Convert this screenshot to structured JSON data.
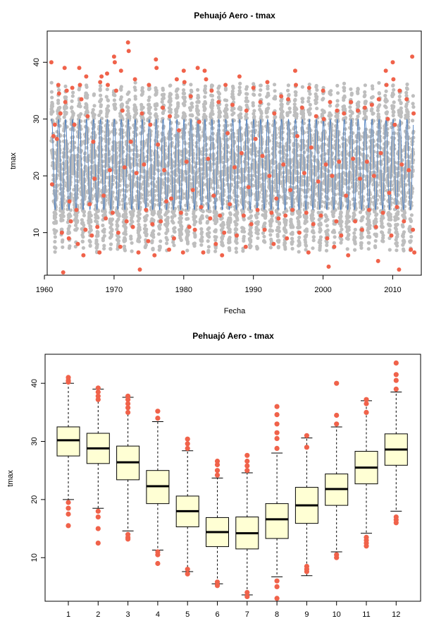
{
  "colors": {
    "grey_points": "#bebebe",
    "outlier_points": "#f0624a",
    "seasonal_line": "#4a7dbf",
    "box_fill": "#ffffd4",
    "frame": "#000000"
  },
  "chart_data": [
    {
      "type": "scatter",
      "title": "Pehuajó Aero - tmax",
      "xlabel": "Fecha",
      "ylabel": "tmax",
      "xlim": [
        1960.4,
        2014.1
      ],
      "ylim": [
        2.5,
        45.5
      ],
      "x_ticks": [
        1960,
        1970,
        1980,
        1990,
        2000,
        2010
      ],
      "y_ticks": [
        10,
        20,
        30,
        40
      ],
      "grid": false,
      "seasonal_cycle": {
        "start_year": 1961,
        "end_year": 2013,
        "min": 14,
        "max": 30,
        "peak_month": 1
      },
      "background_band": {
        "upper_summer": 36.5,
        "upper_winter": 19,
        "lower_summer": 22,
        "lower_winter": 6.5
      },
      "red_outliers": [
        [
          1961.0,
          40.0
        ],
        [
          1961.1,
          18.5
        ],
        [
          1961.3,
          27.0
        ],
        [
          1961.5,
          29.0
        ],
        [
          1961.8,
          26.5
        ],
        [
          1962.0,
          36.0
        ],
        [
          1962.1,
          34.5
        ],
        [
          1962.3,
          31.0
        ],
        [
          1962.5,
          10.0
        ],
        [
          1962.7,
          3.0
        ],
        [
          1962.9,
          39.0
        ],
        [
          1963.0,
          33.0
        ],
        [
          1963.2,
          35.0
        ],
        [
          1963.5,
          9.0
        ],
        [
          1963.6,
          15.5
        ],
        [
          1963.8,
          12.0
        ],
        [
          1964.0,
          35.5
        ],
        [
          1964.3,
          29.0
        ],
        [
          1964.6,
          14.0
        ],
        [
          1964.8,
          8.0
        ],
        [
          1965.0,
          39.0
        ],
        [
          1965.1,
          36.0
        ],
        [
          1965.3,
          33.5
        ],
        [
          1965.6,
          6.0
        ],
        [
          1965.9,
          10.5
        ],
        [
          1966.0,
          37.5
        ],
        [
          1966.2,
          30.5
        ],
        [
          1966.5,
          15.0
        ],
        [
          1966.8,
          9.5
        ],
        [
          1967.0,
          26.0
        ],
        [
          1967.2,
          19.5
        ],
        [
          1967.6,
          11.0
        ],
        [
          1967.9,
          6.5
        ],
        [
          1968.0,
          36.5
        ],
        [
          1968.2,
          37.5
        ],
        [
          1968.5,
          16.5
        ],
        [
          1968.8,
          12.5
        ],
        [
          1969.0,
          38.0
        ],
        [
          1969.1,
          36.0
        ],
        [
          1969.4,
          21.0
        ],
        [
          1969.8,
          13.5
        ],
        [
          1970.0,
          41.0
        ],
        [
          1970.1,
          40.0
        ],
        [
          1970.3,
          35.0
        ],
        [
          1970.6,
          10.0
        ],
        [
          1970.9,
          7.5
        ],
        [
          1971.0,
          38.5
        ],
        [
          1971.2,
          31.5
        ],
        [
          1971.5,
          21.5
        ],
        [
          1971.8,
          12.0
        ],
        [
          1972.0,
          43.5
        ],
        [
          1972.1,
          42.0
        ],
        [
          1972.4,
          26.0
        ],
        [
          1972.7,
          11.0
        ],
        [
          1973.0,
          37.0
        ],
        [
          1973.2,
          20.5
        ],
        [
          1973.5,
          6.5
        ],
        [
          1973.7,
          3.5
        ],
        [
          1974.0,
          31.0
        ],
        [
          1974.3,
          22.0
        ],
        [
          1974.6,
          14.0
        ],
        [
          1974.9,
          8.5
        ],
        [
          1975.0,
          36.0
        ],
        [
          1975.2,
          29.0
        ],
        [
          1975.5,
          11.5
        ],
        [
          1975.8,
          6.0
        ],
        [
          1976.0,
          40.5
        ],
        [
          1976.1,
          39.0
        ],
        [
          1976.3,
          25.5
        ],
        [
          1976.7,
          12.0
        ],
        [
          1977.0,
          32.0
        ],
        [
          1977.2,
          21.0
        ],
        [
          1977.5,
          15.5
        ],
        [
          1977.9,
          7.0
        ],
        [
          1978.0,
          30.5
        ],
        [
          1978.2,
          16.0
        ],
        [
          1978.6,
          9.0
        ],
        [
          1979.0,
          37.0
        ],
        [
          1979.3,
          28.0
        ],
        [
          1979.6,
          13.5
        ],
        [
          1979.9,
          6.5
        ],
        [
          1980.0,
          38.5
        ],
        [
          1980.1,
          36.5
        ],
        [
          1980.4,
          22.5
        ],
        [
          1980.8,
          11.0
        ],
        [
          1981.0,
          34.0
        ],
        [
          1981.3,
          17.5
        ],
        [
          1981.6,
          10.5
        ],
        [
          1982.0,
          39.0
        ],
        [
          1982.2,
          29.5
        ],
        [
          1982.5,
          14.5
        ],
        [
          1982.8,
          6.5
        ],
        [
          1983.0,
          38.5
        ],
        [
          1983.2,
          37.0
        ],
        [
          1983.5,
          23.0
        ],
        [
          1983.8,
          12.5
        ],
        [
          1984.0,
          35.0
        ],
        [
          1984.3,
          16.5
        ],
        [
          1984.6,
          8.0
        ],
        [
          1985.0,
          33.0
        ],
        [
          1985.2,
          13.0
        ],
        [
          1985.5,
          6.0
        ],
        [
          1985.8,
          10.0
        ],
        [
          1986.0,
          36.0
        ],
        [
          1986.3,
          27.5
        ],
        [
          1986.6,
          15.0
        ],
        [
          1987.0,
          32.5
        ],
        [
          1987.3,
          21.5
        ],
        [
          1987.6,
          9.5
        ],
        [
          1988.0,
          37.5
        ],
        [
          1988.3,
          24.0
        ],
        [
          1988.6,
          13.0
        ],
        [
          1988.9,
          7.5
        ],
        [
          1989.0,
          31.5
        ],
        [
          1989.3,
          18.0
        ],
        [
          1989.7,
          11.5
        ],
        [
          1990.0,
          35.5
        ],
        [
          1990.3,
          26.5
        ],
        [
          1990.6,
          14.0
        ],
        [
          1991.0,
          33.0
        ],
        [
          1991.3,
          23.5
        ],
        [
          1991.6,
          10.5
        ],
        [
          1992.0,
          36.5
        ],
        [
          1992.3,
          20.0
        ],
        [
          1992.6,
          13.5
        ],
        [
          1992.9,
          8.0
        ],
        [
          1993.0,
          31.0
        ],
        [
          1993.3,
          16.0
        ],
        [
          1993.6,
          12.5
        ],
        [
          1994.0,
          34.0
        ],
        [
          1994.3,
          22.0
        ],
        [
          1994.6,
          13.0
        ],
        [
          1994.8,
          9.0
        ],
        [
          1995.0,
          33.5
        ],
        [
          1995.3,
          17.5
        ],
        [
          1995.6,
          14.0
        ],
        [
          1996.0,
          38.5
        ],
        [
          1996.1,
          36.0
        ],
        [
          1996.3,
          27.0
        ],
        [
          1996.6,
          10.0
        ],
        [
          1997.0,
          32.0
        ],
        [
          1997.3,
          20.5
        ],
        [
          1997.6,
          13.5
        ],
        [
          1997.9,
          6.5
        ],
        [
          1998.0,
          35.5
        ],
        [
          1998.3,
          25.0
        ],
        [
          1998.6,
          11.5
        ],
        [
          1999.0,
          30.5
        ],
        [
          1999.3,
          19.0
        ],
        [
          1999.7,
          13.0
        ],
        [
          2000.0,
          35.0
        ],
        [
          2000.1,
          30.0
        ],
        [
          2000.4,
          22.0
        ],
        [
          2000.6,
          9.0
        ],
        [
          2000.8,
          4.0
        ],
        [
          2001.0,
          33.0
        ],
        [
          2001.3,
          20.0
        ],
        [
          2001.6,
          7.5
        ],
        [
          2001.9,
          12.0
        ],
        [
          2002.0,
          31.5
        ],
        [
          2002.3,
          22.5
        ],
        [
          2002.6,
          9.5
        ],
        [
          2003.0,
          31.0
        ],
        [
          2003.3,
          16.5
        ],
        [
          2003.6,
          6.0
        ],
        [
          2004.0,
          33.0
        ],
        [
          2004.3,
          23.0
        ],
        [
          2004.6,
          12.0
        ],
        [
          2005.0,
          31.5
        ],
        [
          2005.3,
          19.5
        ],
        [
          2005.6,
          10.5
        ],
        [
          2006.0,
          32.0
        ],
        [
          2006.3,
          22.5
        ],
        [
          2006.6,
          14.0
        ],
        [
          2007.0,
          32.5
        ],
        [
          2007.3,
          20.0
        ],
        [
          2007.6,
          11.0
        ],
        [
          2007.9,
          5.0
        ],
        [
          2008.0,
          33.5
        ],
        [
          2008.3,
          24.0
        ],
        [
          2008.6,
          13.5
        ],
        [
          2009.0,
          38.5
        ],
        [
          2009.1,
          36.0
        ],
        [
          2009.3,
          30.0
        ],
        [
          2009.5,
          17.0
        ],
        [
          2009.8,
          9.5
        ],
        [
          2010.0,
          40.0
        ],
        [
          2010.1,
          37.0
        ],
        [
          2010.3,
          29.0
        ],
        [
          2010.6,
          14.5
        ],
        [
          2010.9,
          3.5
        ],
        [
          2011.0,
          35.0
        ],
        [
          2011.3,
          22.0
        ],
        [
          2011.6,
          12.0
        ],
        [
          2012.0,
          33.5
        ],
        [
          2012.3,
          21.0
        ],
        [
          2012.6,
          7.0
        ],
        [
          2012.8,
          41.0
        ],
        [
          2012.9,
          10.5
        ],
        [
          2013.0,
          31.0
        ],
        [
          2013.1,
          6.5
        ]
      ]
    },
    {
      "type": "box",
      "title": "Pehuajó Aero - tmax",
      "xlabel": "",
      "ylabel": "tmax",
      "ylim": [
        2.5,
        45
      ],
      "y_ticks": [
        10,
        20,
        30,
        40
      ],
      "categories": [
        "1",
        "2",
        "3",
        "4",
        "5",
        "6",
        "7",
        "8",
        "9",
        "10",
        "11",
        "12"
      ],
      "boxes": [
        {
          "q1": 27.5,
          "median": 30.2,
          "q3": 32.5,
          "whisker_low": 20.0,
          "whisker_high": 40.0,
          "outliers_low": [
            19.5,
            18.5,
            17.5,
            15.5
          ],
          "outliers_high": [
            40.5,
            41.0,
            40.2
          ]
        },
        {
          "q1": 26.2,
          "median": 28.8,
          "q3": 31.4,
          "whisker_low": 18.5,
          "whisker_high": 39.0,
          "outliers_low": [
            18.0,
            17.0,
            15.0,
            12.5
          ],
          "outliers_high": [
            39.2,
            38.5,
            37.8,
            37.2
          ]
        },
        {
          "q1": 23.4,
          "median": 26.4,
          "q3": 29.2,
          "whisker_low": 14.6,
          "whisker_high": 37.6,
          "outliers_low": [
            14.0,
            13.5,
            13.2
          ],
          "outliers_high": [
            37.8,
            37.2,
            36.5,
            35.8,
            35.0
          ]
        },
        {
          "q1": 19.3,
          "median": 22.3,
          "q3": 25.0,
          "whisker_low": 11.3,
          "whisker_high": 33.4,
          "outliers_low": [
            11.0,
            10.5,
            9.0
          ],
          "outliers_high": [
            34.0,
            35.2
          ]
        },
        {
          "q1": 15.3,
          "median": 18.0,
          "q3": 20.6,
          "whisker_low": 7.6,
          "whisker_high": 28.4,
          "outliers_low": [
            7.2,
            8.0
          ],
          "outliers_high": [
            28.8,
            29.6,
            30.4
          ]
        },
        {
          "q1": 11.9,
          "median": 14.4,
          "q3": 16.9,
          "whisker_low": 5.5,
          "whisker_high": 23.7,
          "outliers_low": [
            5.2,
            5.8
          ],
          "outliers_high": [
            24.2,
            25.0,
            26.0,
            26.6
          ]
        },
        {
          "q1": 11.5,
          "median": 14.2,
          "q3": 17.0,
          "whisker_low": 3.6,
          "whisker_high": 24.6,
          "outliers_low": [
            3.3,
            4.0
          ],
          "outliers_high": [
            25.0,
            25.8,
            26.6,
            27.6
          ]
        },
        {
          "q1": 13.3,
          "median": 16.6,
          "q3": 19.3,
          "whisker_low": 6.7,
          "whisker_high": 28.0,
          "outliers_low": [
            6.0,
            5.0,
            3.0
          ],
          "outliers_high": [
            28.8,
            30.5,
            31.5,
            33.0,
            34.6,
            36.0
          ]
        },
        {
          "q1": 15.9,
          "median": 19.0,
          "q3": 22.1,
          "whisker_low": 6.9,
          "whisker_high": 30.6,
          "outliers_low": [
            8.5,
            8.0,
            7.6
          ],
          "outliers_high": [
            29.0,
            31.0
          ]
        },
        {
          "q1": 19.0,
          "median": 21.8,
          "q3": 24.4,
          "whisker_low": 11.0,
          "whisker_high": 32.5,
          "outliers_low": [
            10.5,
            10.0
          ],
          "outliers_high": [
            33.0,
            34.5,
            40.0
          ]
        },
        {
          "q1": 22.7,
          "median": 25.5,
          "q3": 28.3,
          "whisker_low": 14.2,
          "whisker_high": 37.0,
          "outliers_low": [
            13.5,
            13.0,
            12.5,
            12.0
          ],
          "outliers_high": [
            35.0,
            36.5,
            37.2
          ]
        },
        {
          "q1": 25.9,
          "median": 28.6,
          "q3": 31.3,
          "whisker_low": 18.0,
          "whisker_high": 38.5,
          "outliers_low": [
            17.0,
            16.5,
            16.0
          ],
          "outliers_high": [
            39.0,
            40.5,
            41.5,
            43.5
          ]
        }
      ]
    }
  ]
}
